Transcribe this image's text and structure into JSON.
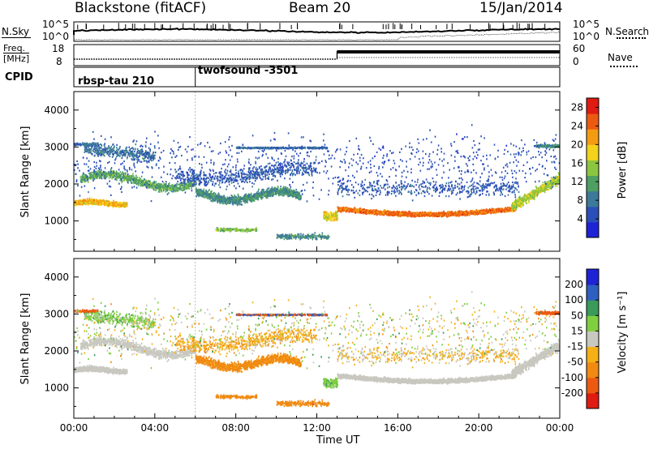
{
  "header": {
    "station": "Blackstone (fitACF)",
    "beam": "Beam 20",
    "date": "15/Jan/2014"
  },
  "noise_panel": {
    "left_label": "N.Sky",
    "right_label": "N.Search",
    "tick_top": "10^5",
    "tick_bottom": "10^0"
  },
  "freq_panel": {
    "left_label_line1": "Freq.",
    "left_label_line2": "[MHz]",
    "right_label": "Nave",
    "left_ticks": [
      "18",
      "8"
    ],
    "right_ticks": [
      "60",
      "0"
    ]
  },
  "cpid_panel": {
    "label": "CPID",
    "programs": [
      {
        "name": "rbsp-tau 210",
        "start_hour": 0
      },
      {
        "name": "twofsound -3501",
        "start_hour": 6
      }
    ]
  },
  "chart_data": [
    {
      "type": "heatmap",
      "panel": "power",
      "xlabel": "Time UT",
      "ylabel": "Slant Range [km]",
      "x_ticks": [
        "00:00",
        "04:00",
        "08:00",
        "12:00",
        "16:00",
        "20:00",
        "00:00"
      ],
      "y_ticks": [
        1000,
        2000,
        3000,
        4000
      ],
      "xlim_hours": [
        0,
        24
      ],
      "ylim_km": [
        180,
        4500
      ],
      "colorbar": {
        "label": "Power [dB]",
        "ticks": [
          4,
          8,
          12,
          16,
          20,
          24,
          28
        ],
        "range": [
          0,
          30
        ],
        "colors": [
          "#1f23d6",
          "#2b4fb8",
          "#3d7a9a",
          "#4f9f62",
          "#8cc63f",
          "#f2d21b",
          "#f39c12",
          "#ec5a12",
          "#e01b12"
        ]
      }
    },
    {
      "type": "heatmap",
      "panel": "velocity",
      "xlabel": "Time UT",
      "ylabel": "Slant Range [km]",
      "x_ticks": [
        "00:00",
        "04:00",
        "08:00",
        "12:00",
        "16:00",
        "20:00",
        "00:00"
      ],
      "y_ticks": [
        1000,
        2000,
        3000,
        4000
      ],
      "xlim_hours": [
        0,
        24
      ],
      "ylim_km": [
        180,
        4500
      ],
      "colorbar": {
        "label": "Velocity [m s⁻¹]",
        "ticks": [
          200,
          100,
          50,
          15,
          -15,
          -50,
          -100,
          -200
        ],
        "colors": [
          "#1f23d6",
          "#2f5fbf",
          "#3a9a5a",
          "#7fcf3f",
          "#c8c8c0",
          "#f5b016",
          "#f08a12",
          "#ec5a12",
          "#e01b12"
        ]
      }
    }
  ]
}
